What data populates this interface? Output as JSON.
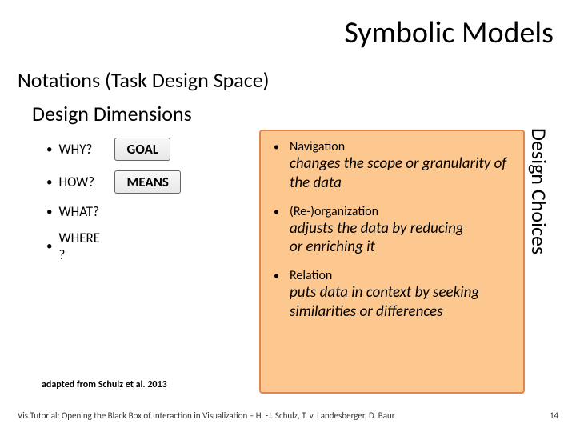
{
  "title": "Symbolic Models",
  "subtitle": "Notations (Task Design Space)",
  "dimensions": {
    "heading": "Design Dimensions",
    "items": [
      {
        "label": "WHY?",
        "box": "GOAL"
      },
      {
        "label": "HOW?",
        "box": "MEANS"
      },
      {
        "label": "WHAT?",
        "box": ""
      },
      {
        "label": "WHERE?",
        "box": ""
      }
    ]
  },
  "choices": {
    "vertical_label": "Design Choices",
    "items": [
      {
        "title": "Navigation",
        "desc": "changes the scope or granularity of the data"
      },
      {
        "title": "(Re-)organization",
        "desc": "adjusts the data by reducing\nor enriching it"
      },
      {
        "title": "Relation",
        "desc": "puts data in context by seeking similarities or differences"
      }
    ],
    "background_color": "#fdc88f",
    "border_color": "#e08850"
  },
  "citation": "adapted from Schulz et al. 2013",
  "footer": {
    "text": "Vis Tutorial: Opening the Black Box of Interaction in Visualization – H. -J. Schulz, T. v. Landesberger, D. Baur",
    "page": "14"
  }
}
